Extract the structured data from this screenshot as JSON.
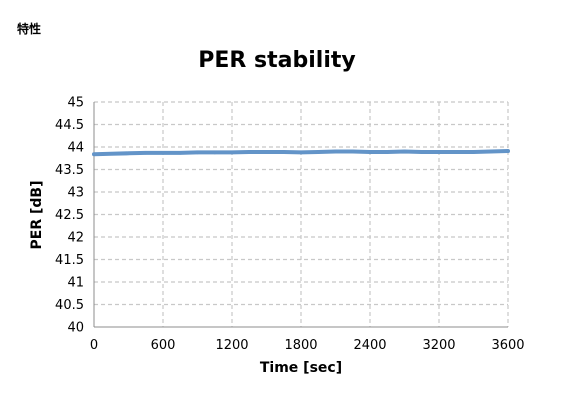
{
  "page": {
    "heading": "特性"
  },
  "chart_data": {
    "type": "line",
    "title": "PER stability",
    "xlabel": "Time [sec]",
    "ylabel": "PER [dB]",
    "xlim": [
      0,
      3600
    ],
    "ylim": [
      40,
      45
    ],
    "x_ticks": [
      "0",
      "600",
      "1200",
      "1800",
      "2400",
      "3200",
      "3600"
    ],
    "y_ticks": [
      "40",
      "40.5",
      "41",
      "41.5",
      "42",
      "42.5",
      "43",
      "43.5",
      "44",
      "44.5",
      "45"
    ],
    "grid": true,
    "series": [
      {
        "color": "#6394c8",
        "x": [
          0,
          150,
          300,
          450,
          600,
          750,
          900,
          1050,
          1200,
          1350,
          1500,
          1650,
          1800,
          1950,
          2100,
          2250,
          2400,
          2550,
          2700,
          2850,
          3000,
          3150,
          3300,
          3450,
          3600
        ],
        "values": [
          43.84,
          43.85,
          43.86,
          43.87,
          43.87,
          43.87,
          43.88,
          43.88,
          43.88,
          43.89,
          43.89,
          43.89,
          43.88,
          43.89,
          43.9,
          43.9,
          43.89,
          43.89,
          43.9,
          43.89,
          43.89,
          43.89,
          43.89,
          43.9,
          43.91
        ]
      }
    ]
  }
}
